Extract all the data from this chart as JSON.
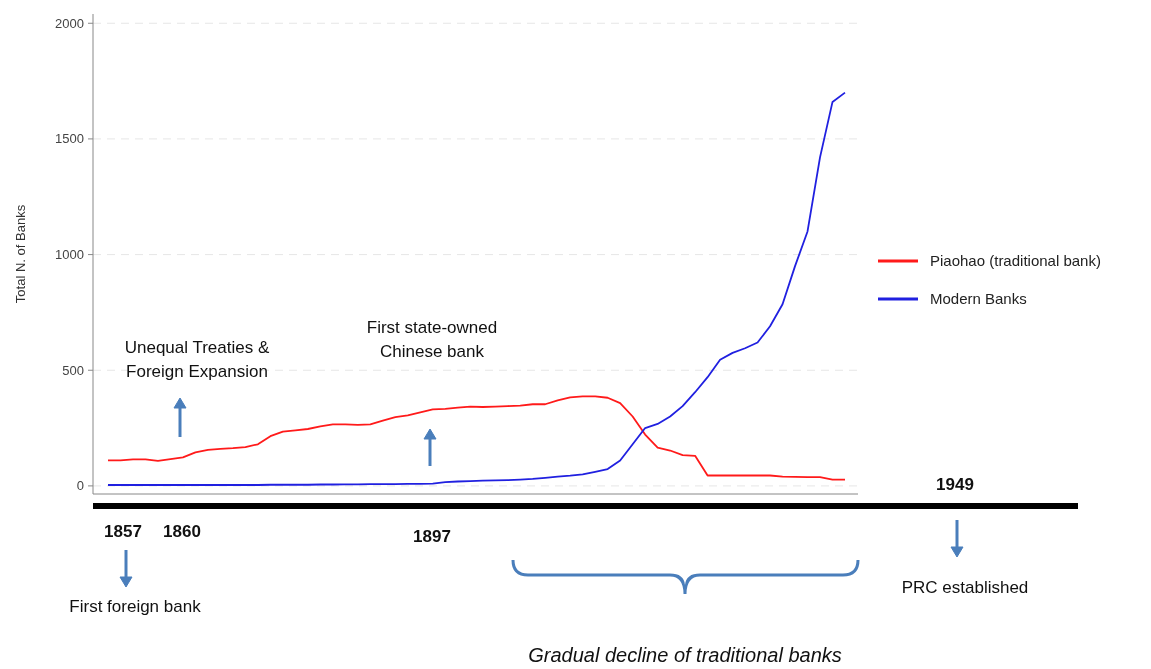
{
  "chart_data": {
    "type": "line",
    "ylabel": "Total N. of Banks",
    "categories": [
      null,
      null,
      null,
      null,
      null,
      null,
      null,
      null,
      null,
      null,
      null,
      null,
      null,
      null,
      null,
      null,
      null,
      null,
      null,
      null,
      null,
      null,
      null,
      null,
      null,
      null,
      null,
      null,
      null,
      null,
      null,
      null,
      null,
      null,
      null,
      null,
      null,
      null,
      null,
      null,
      null,
      null,
      null,
      null,
      null,
      null,
      null,
      null,
      null,
      null,
      null,
      null,
      null,
      null,
      null,
      null,
      null,
      null,
      null,
      null
    ],
    "series": [
      {
        "name": "Piaohao (traditional bank)",
        "color": "#ff1a1a",
        "values": [
          110,
          110,
          115,
          115,
          108,
          116,
          123,
          145,
          156,
          160,
          163,
          168,
          180,
          215,
          235,
          240,
          246,
          257,
          266,
          266,
          264,
          266,
          282,
          297,
          305,
          318,
          331,
          333,
          338,
          343,
          341,
          343,
          345,
          347,
          353,
          353,
          370,
          383,
          387,
          387,
          381,
          358,
          300,
          222,
          165,
          153,
          133,
          130,
          45,
          45,
          45,
          45,
          45,
          45,
          40,
          39,
          38,
          38,
          27,
          27
        ]
      },
      {
        "name": "Modern Banks",
        "color": "#2020e0",
        "values": [
          4,
          4,
          4,
          4,
          4,
          4,
          4,
          4,
          4,
          4,
          4,
          4,
          4,
          5,
          5,
          5,
          5,
          6,
          6,
          7,
          7,
          8,
          8,
          8,
          9,
          9,
          10,
          16,
          19,
          21,
          23,
          24,
          25,
          27,
          30,
          35,
          40,
          44,
          50,
          61,
          73,
          110,
          180,
          250,
          268,
          300,
          345,
          405,
          470,
          545,
          575,
          595,
          620,
          690,
          785,
          950,
          1100,
          1420,
          1660,
          1700
        ]
      }
    ],
    "ylim": [
      -35,
      2040
    ],
    "yticks": [
      0,
      500,
      1000,
      1500,
      2000
    ],
    "grid": "y",
    "legend": "right",
    "annotations": [
      "Unequal Treaties & Foreign Expansion",
      "First state-owned Chinese bank",
      "1857",
      "1860",
      "1897",
      "1949",
      "First foreign bank",
      "PRC established",
      "Gradual decline of traditional banks"
    ]
  }
}
